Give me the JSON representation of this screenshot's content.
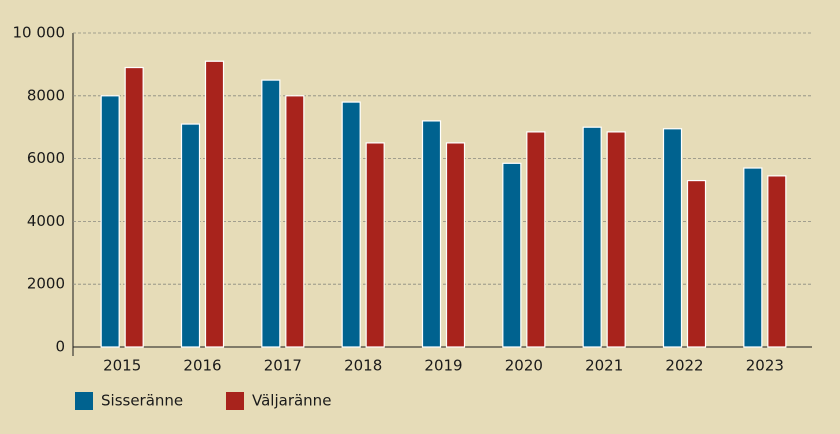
{
  "chart_data": {
    "type": "bar",
    "categories": [
      "2015",
      "2016",
      "2017",
      "2018",
      "2019",
      "2020",
      "2021",
      "2022",
      "2023"
    ],
    "series": [
      {
        "name": "Sisseränne",
        "color": "#00628f",
        "values": [
          8000,
          7100,
          8500,
          7800,
          7200,
          5850,
          7000,
          6950,
          5700
        ]
      },
      {
        "name": "Väljaränne",
        "color": "#a8231c",
        "values": [
          8900,
          9100,
          8000,
          6500,
          6500,
          6850,
          6850,
          5300,
          5450
        ]
      }
    ],
    "ylim": [
      0,
      10000
    ],
    "yticks": [
      0,
      2000,
      4000,
      6000,
      8000,
      {
        "value": 10000,
        "label": "10 000"
      }
    ],
    "grid": true
  }
}
